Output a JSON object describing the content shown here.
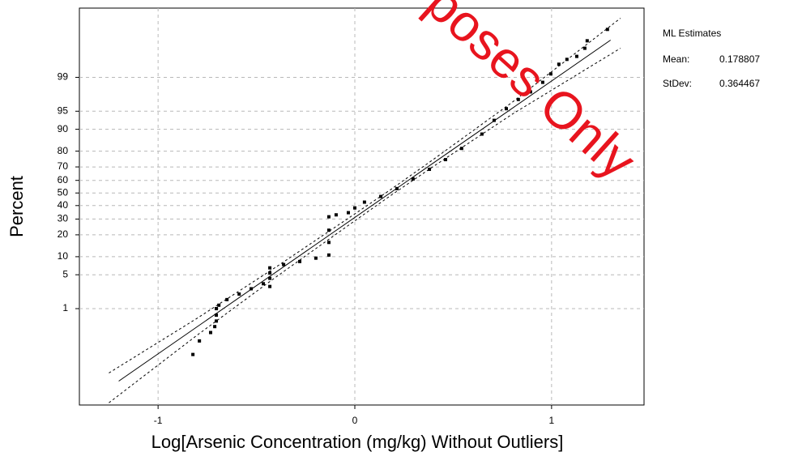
{
  "chart_data": {
    "type": "probability",
    "x_label": "Log[Arsenic Concentration (mg/kg) Without Outliers]",
    "y_label": "Percent",
    "y_scale": "probit",
    "xlim": [
      -1.4,
      1.47
    ],
    "xticks": [
      -1,
      0,
      1
    ],
    "ylim": [
      0.001,
      99.99
    ],
    "yticks": [
      1,
      5,
      10,
      20,
      30,
      40,
      50,
      60,
      70,
      80,
      90,
      95,
      99
    ],
    "grid": true,
    "points": {
      "color": "#000000",
      "x": [
        -0.823,
        -0.79,
        -0.733,
        -0.712,
        -0.704,
        -0.704,
        -0.704,
        -0.691,
        -0.65,
        -0.588,
        -0.527,
        -0.465,
        -0.432,
        -0.432,
        -0.432,
        -0.432,
        -0.362,
        -0.28,
        -0.198,
        -0.132,
        -0.132,
        -0.132,
        -0.132,
        -0.095,
        -0.033,
        0,
        0.049,
        0.132,
        0.214,
        0.296,
        0.379,
        0.461,
        0.543,
        0.646,
        0.708,
        0.77,
        0.831,
        0.893,
        0.955,
        0.996,
        1.037,
        1.078,
        1.128,
        1.169,
        1.181,
        1.284
      ],
      "values": [
        0.058,
        0.146,
        0.25,
        0.36,
        0.5,
        0.7,
        1.0,
        1.2,
        1.6,
        2.1,
        2.7,
        3.4,
        3.0,
        4.3,
        5.4,
        6.6,
        7.5,
        8.4,
        9.5,
        10.6,
        16,
        22.7,
        31.6,
        33,
        34.6,
        38.2,
        42.7,
        47.2,
        53.5,
        61.1,
        68.3,
        74.9,
        81.5,
        88.2,
        92.8,
        95.5,
        97.0,
        97.9,
        98.7,
        99.17,
        99.52,
        99.64,
        99.7,
        99.82,
        99.89,
        99.95
      ]
    },
    "fit_line": {
      "color": "#000000",
      "x": [
        -1.2,
        1.3
      ],
      "values": [
        0.0077,
        99.895
      ]
    },
    "confidence_bands": [
      {
        "color": "#000000",
        "x": [
          -1.25,
          -0.8,
          -0.4,
          0,
          0.18,
          0.4,
          0.8,
          1.35
        ],
        "values": [
          0.0147,
          0.593,
          6.84,
          33.7,
          52.5,
          75.1,
          96.6,
          99.978
        ]
      },
      {
        "color": "#000000",
        "x": [
          -1.25,
          -0.8,
          -0.4,
          0,
          0.18,
          0.4,
          0.8,
          1.35
        ],
        "values": [
          0.00122,
          0.215,
          4.57,
          28.8,
          47.7,
          70.4,
          94.35,
          99.82
        ]
      }
    ],
    "estimates": {
      "title": "ML Estimates",
      "rows": [
        {
          "label": "Mean:",
          "value": 0.178807
        },
        {
          "label": "StDev:",
          "value": 0.364467
        }
      ]
    },
    "watermark": {
      "text": "poses Only",
      "color": "#e8141e"
    }
  }
}
